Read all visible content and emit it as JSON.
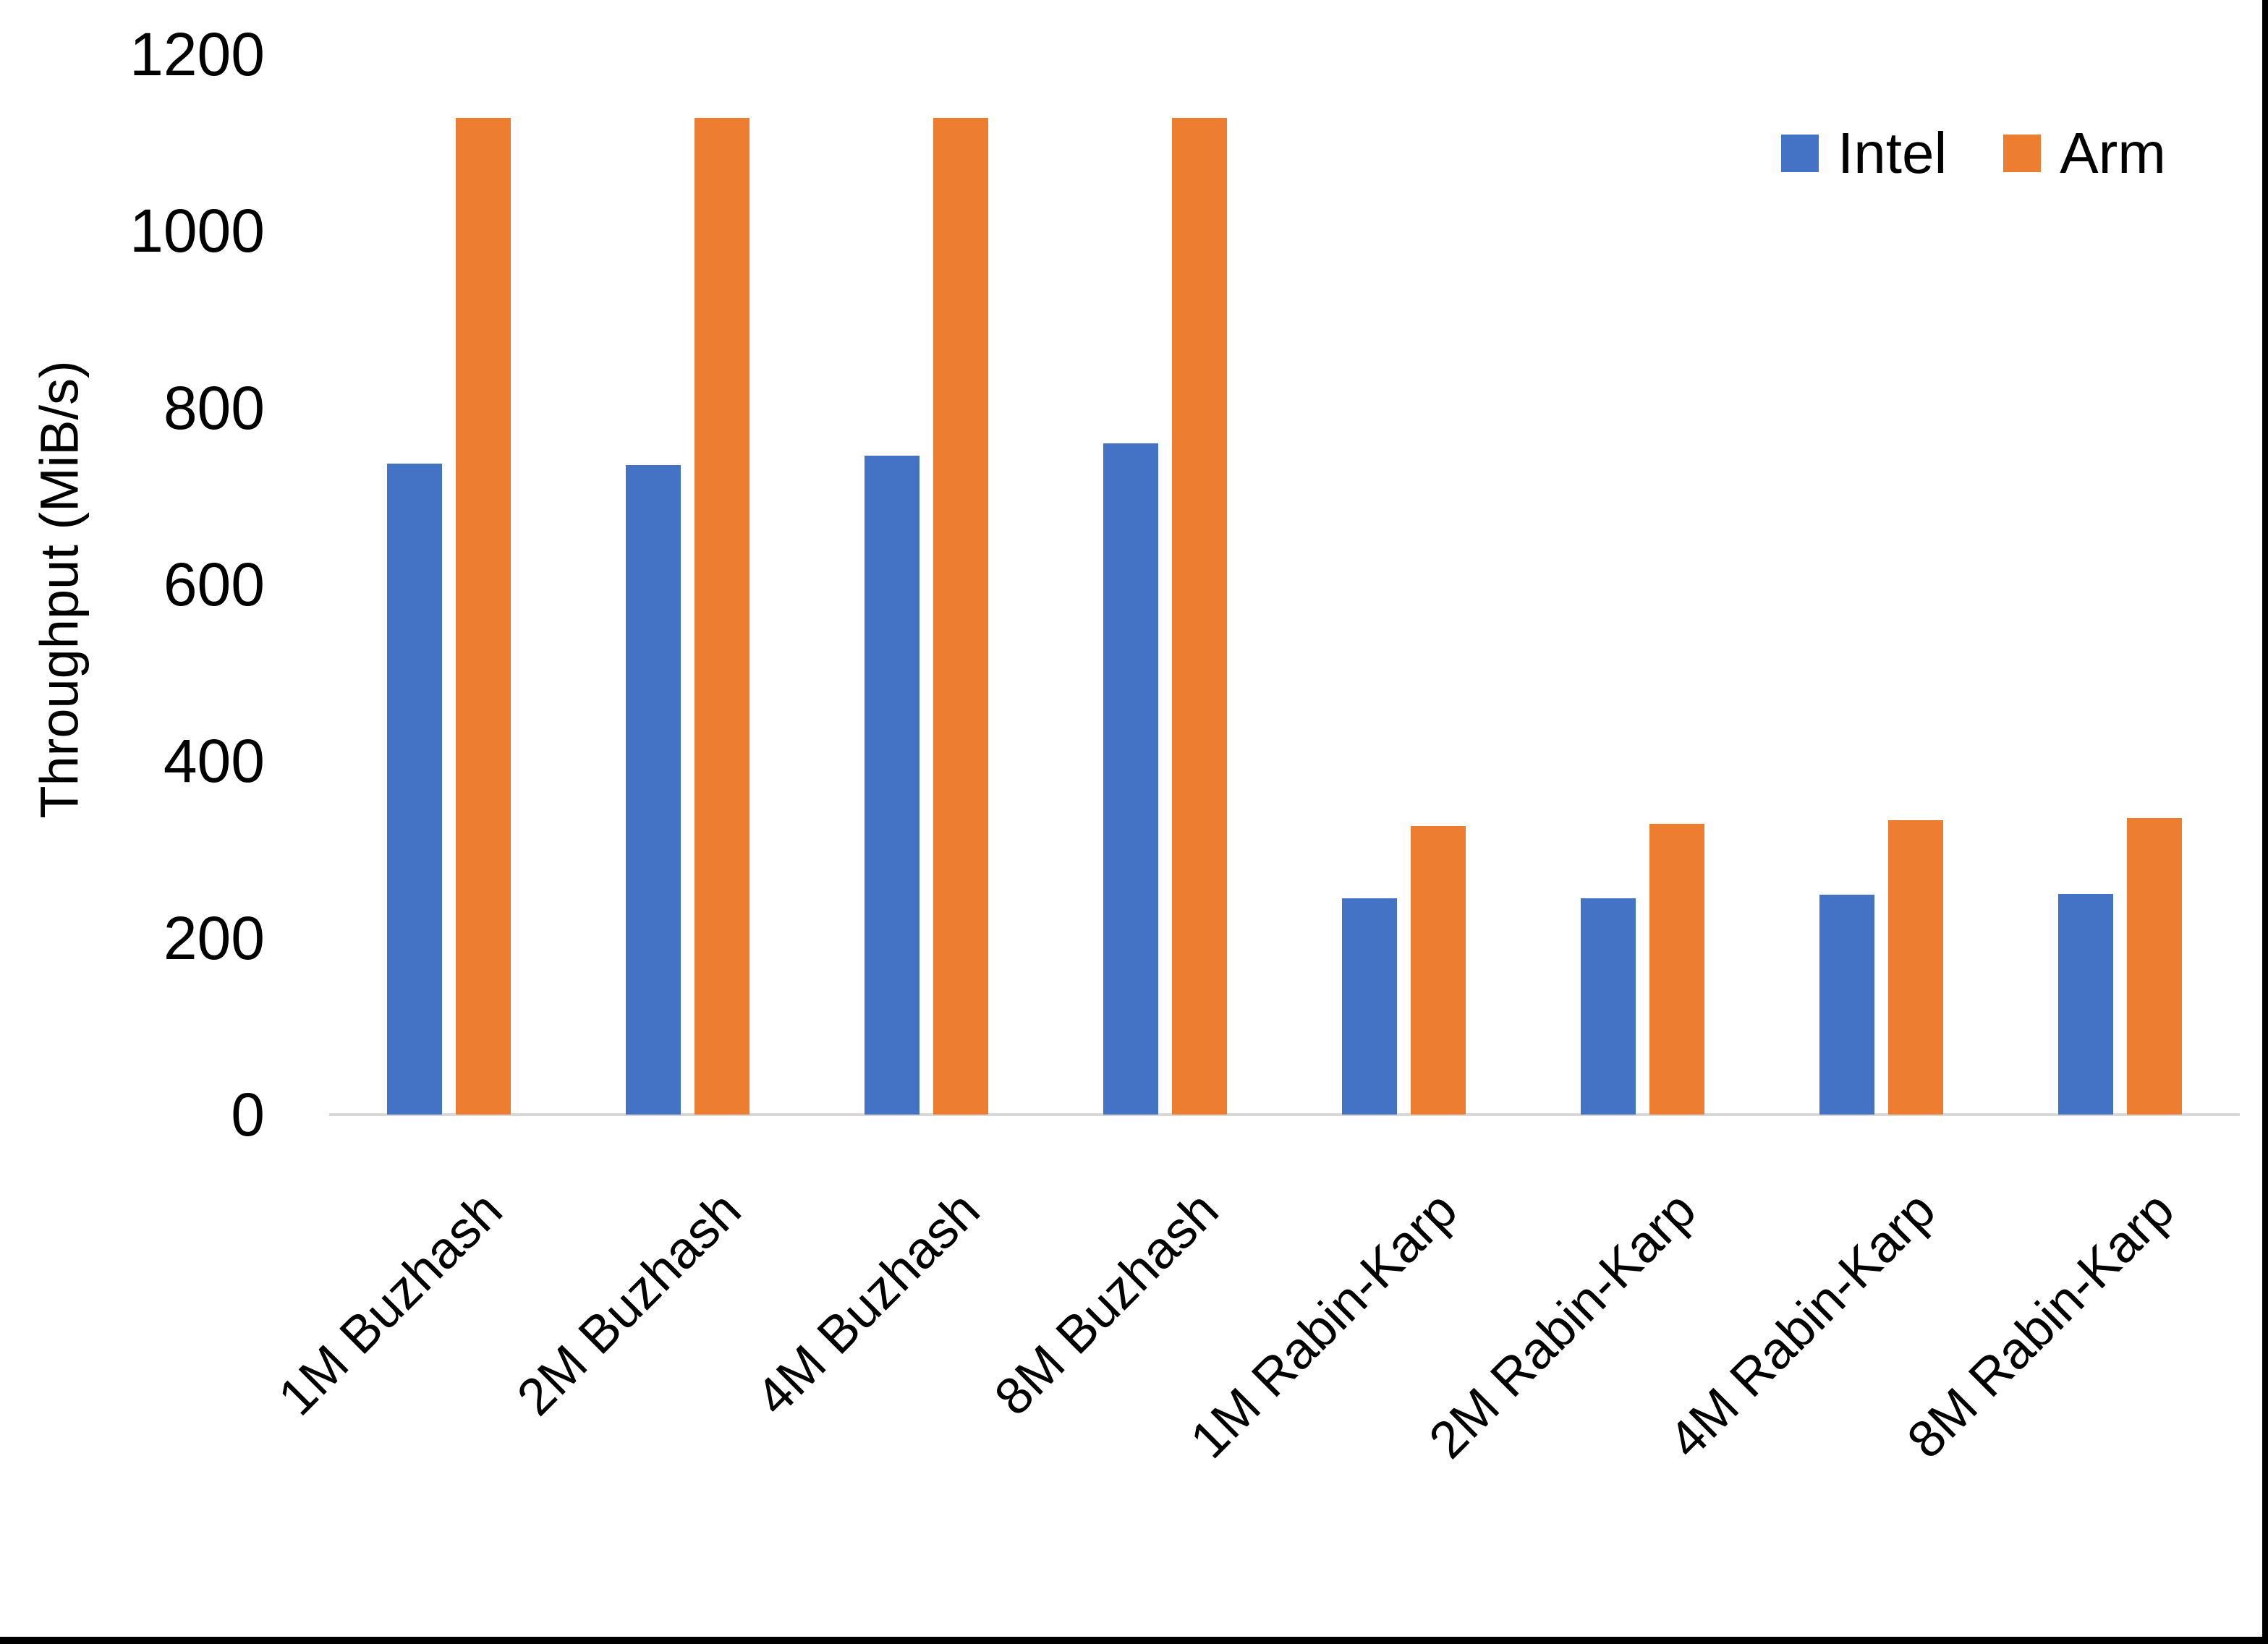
{
  "chart_data": {
    "type": "bar",
    "title": "",
    "xlabel": "",
    "ylabel": "Throughput (MiB/s)",
    "categories": [
      "1M Buzhash",
      "2M Buzhash",
      "4M Buzhash",
      "8M Buzhash",
      "1M Rabin-Karp",
      "2M Rabin-Karp",
      "4M Rabin-Karp",
      "8M Rabin-Karp"
    ],
    "series": [
      {
        "name": "Intel",
        "color": "#4472C4",
        "values": [
          737,
          735,
          746,
          760,
          245,
          245,
          249,
          250
        ]
      },
      {
        "name": "Arm",
        "color": "#ED7D31",
        "values": [
          1128,
          1128,
          1128,
          1128,
          327,
          329,
          333,
          336
        ]
      }
    ],
    "ylim": [
      0,
      1200
    ],
    "yticks": [
      0,
      200,
      400,
      600,
      800,
      1000,
      1200
    ],
    "grid": false,
    "legend_position": "top-right"
  },
  "colors": {
    "background": "#FFFFFF",
    "axis_line": "#D9D9D9",
    "text": "#000000",
    "frame_border": "#000000",
    "intel": "#4472C4",
    "arm": "#ED7D31"
  }
}
